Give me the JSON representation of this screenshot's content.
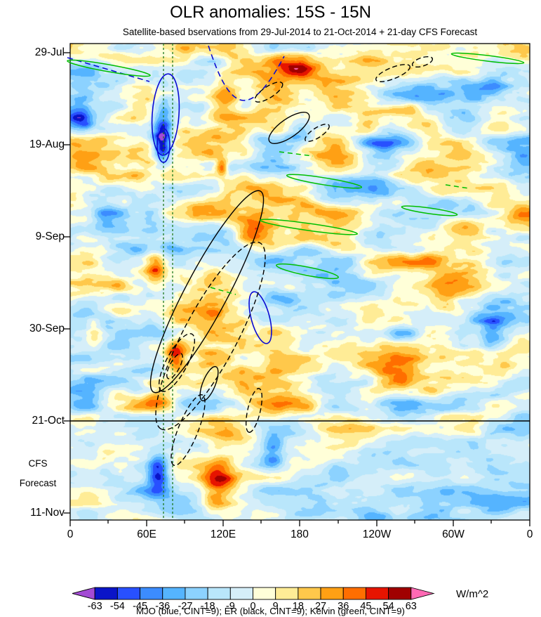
{
  "chart_data": {
    "type": "heatmap",
    "title": "OLR anomalies: 15S - 15N",
    "subtitle": "Satellite-based bservations from 29-Jul-2014 to 21-Oct-2014 + 21-day CFS Forecast",
    "description": "Time-longitude (Hovmoller) diagram of OLR anomalies averaged 15S-15N; filled anomaly contours with overlaid MJO, ER and Kelvin wave contours; forecast portion below solid horizontal line at 21-Oct",
    "x_axis": {
      "ticks": [
        "0",
        "60E",
        "120E",
        "180",
        "120W",
        "60W",
        "0"
      ],
      "range_deg": [
        0,
        360
      ],
      "minor_tick_interval_deg": 30
    },
    "y_axis": {
      "ticks": [
        "29-Jul",
        "19-Aug",
        "9-Sep",
        "30-Sep",
        "21-Oct",
        "11-Nov"
      ],
      "direction": "time increases downward",
      "tick_interval_days": 21
    },
    "forecast": {
      "start_date": "21-Oct",
      "label_lines": [
        "CFS",
        "Forecast"
      ]
    },
    "reference_lines": {
      "vertical_dashed_green_longitudes_deg_e": [
        73,
        80
      ]
    },
    "colorbar": {
      "units": "W/m^2",
      "levels": [
        -63,
        -54,
        -45,
        -36,
        -27,
        -18,
        -9,
        0,
        9,
        18,
        27,
        36,
        45,
        54,
        63
      ],
      "labels": [
        "-63",
        "-54",
        "-45",
        "-36",
        "-27",
        "-18",
        "-9",
        "0",
        "9",
        "18",
        "27",
        "36",
        "45",
        "54",
        "63"
      ],
      "colors": [
        "#A34BD4",
        "#0A14C8",
        "#2850FF",
        "#3C8CFF",
        "#55B4FF",
        "#8CD2FF",
        "#B9E6FB",
        "#D5EEF9",
        "#FFFFD8",
        "#FFEC96",
        "#FFC84B",
        "#FFA014",
        "#FF6E00",
        "#E61400",
        "#A00000",
        "#FF69B4"
      ]
    },
    "legend_caption": "MJO (blue, CINT=9); ER (black, CINT=9); Kelvin (green, CINT=9)",
    "overlay_contours": [
      {
        "name": "MJO",
        "color": "blue",
        "color_hex": "#0A0AD2",
        "cint": 9
      },
      {
        "name": "ER",
        "color": "black",
        "color_hex": "#000000",
        "cint": 9
      },
      {
        "name": "Kelvin",
        "color": "green",
        "color_hex": "#00BE00",
        "cint": 9
      }
    ]
  }
}
